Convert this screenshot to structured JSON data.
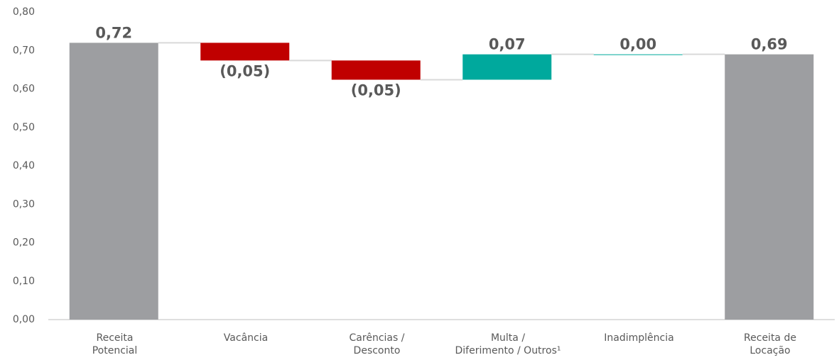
{
  "chart_data": {
    "type": "waterfall",
    "categories": [
      "Receita\nPotencial",
      "Vacância",
      "Carências /\nDesconto",
      "Multa /\nDiferimento / Outros¹",
      "Inadimplência",
      "Receita de\nLocação"
    ],
    "values": [
      0.72,
      -0.046,
      -0.05,
      0.066,
      0,
      0.69
    ],
    "value_labels": [
      "0,72",
      "(0,05)",
      "(0,05)",
      "0,07",
      "0,00",
      "0,69"
    ],
    "totals": [
      0,
      5
    ],
    "colors": {
      "total": "#9d9ea1",
      "increase": "#00a99d",
      "decrease": "#c00000"
    },
    "ylim": [
      0,
      0.8
    ],
    "yticks": [
      {
        "value": 0,
        "label": "0,00"
      },
      {
        "value": 0.1,
        "label": "0,10"
      },
      {
        "value": 0.2,
        "label": "0,20"
      },
      {
        "value": 0.3,
        "label": "0,30"
      },
      {
        "value": 0.4,
        "label": "0,40"
      },
      {
        "value": 0.5,
        "label": "0,50"
      },
      {
        "value": 0.6,
        "label": "0,60"
      },
      {
        "value": 0.7,
        "label": "0,70"
      },
      {
        "value": 0.8,
        "label": "0,80"
      }
    ],
    "grid": false
  }
}
